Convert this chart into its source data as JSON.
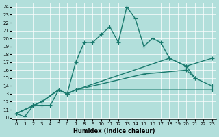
{
  "xlabel": "Humidex (Indice chaleur)",
  "background_color": "#b2dfdb",
  "grid_color": "#ffffff",
  "line_color": "#1a7a6e",
  "xlim": [
    -0.5,
    23.5
  ],
  "ylim": [
    9.8,
    24.5
  ],
  "xticks": [
    0,
    1,
    2,
    3,
    4,
    5,
    6,
    7,
    8,
    9,
    10,
    11,
    12,
    13,
    14,
    15,
    16,
    17,
    18,
    19,
    20,
    21,
    22,
    23
  ],
  "yticks": [
    10,
    11,
    12,
    13,
    14,
    15,
    16,
    17,
    18,
    19,
    20,
    21,
    22,
    23,
    24
  ],
  "line1_x": [
    0,
    1,
    2,
    3,
    4,
    5,
    6,
    7,
    8,
    9,
    10,
    11,
    12,
    13,
    14,
    15,
    16,
    17,
    18,
    20,
    21
  ],
  "line1_y": [
    10.5,
    10.1,
    11.5,
    11.5,
    11.5,
    13.5,
    13.0,
    17.0,
    19.5,
    19.5,
    20.5,
    21.5,
    19.5,
    24.0,
    22.5,
    19.0,
    20.0,
    19.5,
    17.5,
    16.5,
    15.0
  ],
  "line2_x": [
    0,
    2,
    3,
    5,
    6,
    7,
    23
  ],
  "line2_y": [
    10.5,
    11.5,
    12.0,
    13.5,
    13.0,
    13.5,
    13.5
  ],
  "line3_x": [
    0,
    2,
    3,
    5,
    6,
    7,
    15,
    20,
    21,
    23
  ],
  "line3_y": [
    10.5,
    11.5,
    12.0,
    13.5,
    13.0,
    13.5,
    15.5,
    16.0,
    15.0,
    14.0
  ],
  "line4_x": [
    0,
    2,
    3,
    5,
    6,
    7,
    18,
    20,
    23
  ],
  "line4_y": [
    10.5,
    11.5,
    12.0,
    13.5,
    13.0,
    13.5,
    17.5,
    16.5,
    17.5
  ],
  "markersize": 4,
  "linewidth": 1.0
}
